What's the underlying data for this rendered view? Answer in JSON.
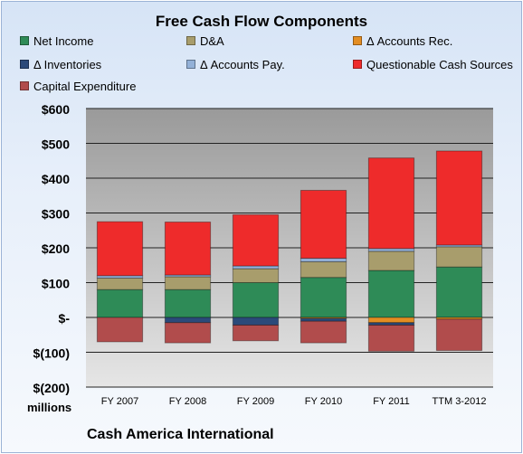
{
  "chart_data": {
    "type": "bar",
    "stacked": true,
    "title": "Free Cash Flow Components",
    "categories": [
      "FY 2007",
      "FY 2008",
      "FY 2009",
      "FY 2010",
      "FY 2011",
      "TTM 3-2012"
    ],
    "ylim": [
      -200,
      600
    ],
    "yticks": [
      600,
      500,
      400,
      300,
      200,
      100,
      0,
      -100,
      -200
    ],
    "ytick_labels": [
      "$600",
      "$500",
      "$400",
      "$300",
      "$200",
      "$100",
      "$-",
      "$(100)",
      "$(200)"
    ],
    "units_label": "millions",
    "grid": true,
    "legend_position": "top",
    "series": [
      {
        "name": "Net Income",
        "color": "#2e8b57",
        "values": [
          80,
          80,
          100,
          115,
          135,
          145
        ]
      },
      {
        "name": "D&A",
        "color": "#a89d6c",
        "values": [
          33,
          37,
          40,
          45,
          55,
          58
        ]
      },
      {
        "name": "Δ Accounts Rec.",
        "color": "#e38d22",
        "values": [
          0,
          0,
          0,
          -3,
          -15,
          -5
        ]
      },
      {
        "name": "Δ Inventories",
        "color": "#2b4a7a",
        "values": [
          0,
          -15,
          -22,
          -8,
          -7,
          0
        ]
      },
      {
        "name": "Δ Accounts Pay.",
        "color": "#93b1d8",
        "values": [
          7,
          5,
          8,
          10,
          8,
          5
        ]
      },
      {
        "name": "Questionable Cash Sources",
        "color": "#ee2b2b",
        "values": [
          155,
          152,
          147,
          195,
          260,
          270
        ]
      },
      {
        "name": "Capital Expenditure",
        "color": "#b14c4c",
        "values": [
          -70,
          -58,
          -45,
          -62,
          -75,
          -90
        ]
      }
    ]
  },
  "footer": {
    "company": "Cash America International"
  }
}
